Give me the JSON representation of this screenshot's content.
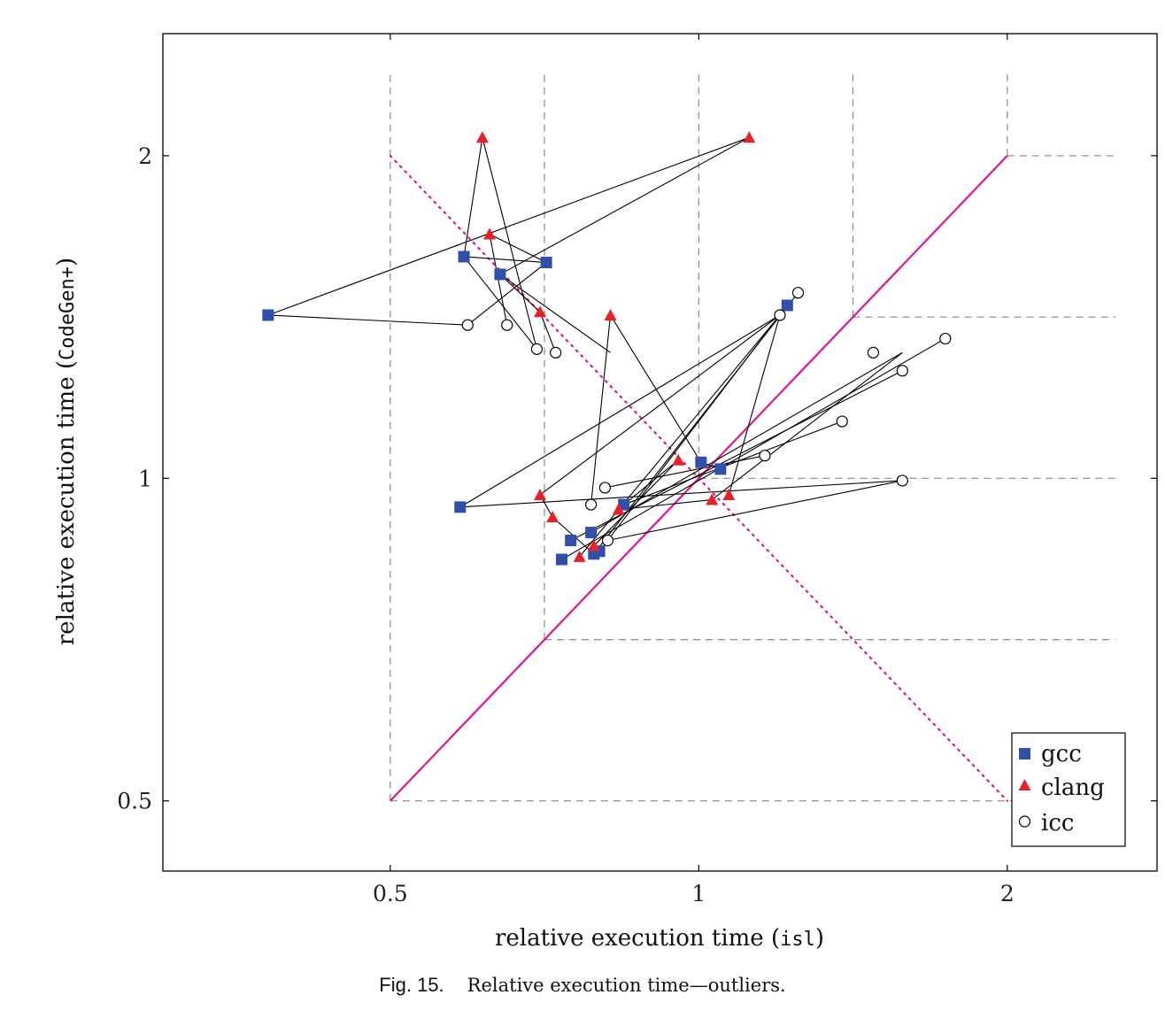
{
  "chart_data": {
    "type": "scatter",
    "xlabel_prefix": "relative execution time (",
    "xlabel_code": "isl",
    "xlabel_suffix": ")",
    "ylabel_prefix": "relative execution time (",
    "ylabel_code": "CodeGen+",
    "ylabel_suffix": ")",
    "x_scale": "log2",
    "y_scale": "log2",
    "xlim": [
      0.3,
      2.8
    ],
    "ylim": [
      0.43,
      2.6
    ],
    "xticks": [
      0.5,
      1,
      2
    ],
    "xtick_labels": [
      "0.5",
      "1",
      "2"
    ],
    "yticks": [
      0.5,
      1,
      2
    ],
    "ytick_labels": [
      "0.5",
      "1",
      "2"
    ],
    "legend_position": "bottom-right",
    "colors": {
      "gcc": "#2f4fa8",
      "clang": "#e8202a",
      "icc": "#000000",
      "diagonal": "#e0168c",
      "connector": "#000000",
      "grid": "#888888"
    },
    "series": [
      {
        "name": "gcc",
        "marker": "square",
        "points": [
          [
            0.38,
            1.42
          ],
          [
            0.59,
            1.61
          ],
          [
            0.64,
            1.55
          ],
          [
            0.71,
            1.59
          ],
          [
            0.585,
            0.94
          ],
          [
            0.735,
            0.84
          ],
          [
            0.75,
            0.875
          ],
          [
            0.785,
            0.89
          ],
          [
            0.79,
            0.85
          ],
          [
            0.8,
            0.855
          ],
          [
            0.845,
            0.945
          ],
          [
            1.005,
            1.035
          ],
          [
            1.05,
            1.02
          ],
          [
            1.22,
            1.45
          ]
        ]
      },
      {
        "name": "clang",
        "marker": "triangle",
        "points": [
          [
            0.615,
            2.08
          ],
          [
            0.625,
            1.69
          ],
          [
            0.7,
            1.43
          ],
          [
            0.82,
            1.42
          ],
          [
            1.12,
            2.08
          ],
          [
            0.7,
            0.965
          ],
          [
            0.72,
            0.92
          ],
          [
            0.765,
            0.845
          ],
          [
            0.79,
            0.865
          ],
          [
            0.835,
            0.935
          ],
          [
            0.955,
            1.04
          ],
          [
            1.03,
            0.955
          ],
          [
            1.07,
            0.965
          ]
        ]
      },
      {
        "name": "icc",
        "marker": "circle",
        "points": [
          [
            0.595,
            1.39
          ],
          [
            0.65,
            1.39
          ],
          [
            0.695,
            1.32
          ],
          [
            0.725,
            1.31
          ],
          [
            0.785,
            0.945
          ],
          [
            0.81,
            0.98
          ],
          [
            0.815,
            0.875
          ],
          [
            1.16,
            1.05
          ],
          [
            1.2,
            1.42
          ],
          [
            1.25,
            1.49
          ],
          [
            1.48,
            1.31
          ],
          [
            1.58,
            1.26
          ],
          [
            1.74,
            1.35
          ],
          [
            1.58,
            0.995
          ],
          [
            1.38,
            1.13
          ]
        ]
      }
    ],
    "connections": [
      [
        [
          0.38,
          1.42
        ],
        [
          1.12,
          2.08
        ]
      ],
      [
        [
          1.12,
          2.08
        ],
        [
          0.64,
          1.55
        ]
      ],
      [
        [
          0.64,
          1.55
        ],
        [
          0.82,
          1.31
        ]
      ],
      [
        [
          0.38,
          1.42
        ],
        [
          0.595,
          1.39
        ]
      ],
      [
        [
          0.595,
          1.39
        ],
        [
          0.71,
          1.59
        ]
      ],
      [
        [
          0.71,
          1.59
        ],
        [
          0.625,
          1.69
        ]
      ],
      [
        [
          0.625,
          1.69
        ],
        [
          0.65,
          1.39
        ]
      ],
      [
        [
          0.59,
          1.61
        ],
        [
          0.615,
          2.08
        ]
      ],
      [
        [
          0.615,
          2.08
        ],
        [
          0.695,
          1.32
        ]
      ],
      [
        [
          0.695,
          1.32
        ],
        [
          0.59,
          1.61
        ]
      ],
      [
        [
          0.59,
          1.61
        ],
        [
          0.71,
          1.59
        ]
      ],
      [
        [
          0.7,
          1.43
        ],
        [
          0.725,
          1.31
        ]
      ],
      [
        [
          0.64,
          1.55
        ],
        [
          0.7,
          1.43
        ]
      ],
      [
        [
          0.585,
          0.94
        ],
        [
          1.58,
          0.995
        ]
      ],
      [
        [
          0.585,
          0.94
        ],
        [
          1.2,
          1.42
        ]
      ],
      [
        [
          0.7,
          0.965
        ],
        [
          1.2,
          1.42
        ]
      ],
      [
        [
          0.785,
          0.945
        ],
        [
          0.82,
          1.42
        ]
      ],
      [
        [
          0.82,
          1.42
        ],
        [
          1.005,
          1.035
        ]
      ],
      [
        [
          1.005,
          1.035
        ],
        [
          1.05,
          1.02
        ]
      ],
      [
        [
          0.81,
          0.98
        ],
        [
          1.16,
          1.05
        ]
      ],
      [
        [
          0.735,
          0.84
        ],
        [
          1.74,
          1.35
        ]
      ],
      [
        [
          0.75,
          0.875
        ],
        [
          1.58,
          1.26
        ]
      ],
      [
        [
          0.785,
          0.89
        ],
        [
          1.58,
          1.31
        ]
      ],
      [
        [
          0.79,
          0.85
        ],
        [
          1.25,
          1.49
        ]
      ],
      [
        [
          0.8,
          0.855
        ],
        [
          1.22,
          1.45
        ]
      ],
      [
        [
          0.815,
          0.875
        ],
        [
          1.58,
          0.995
        ]
      ],
      [
        [
          0.845,
          0.945
        ],
        [
          1.38,
          1.13
        ]
      ],
      [
        [
          0.955,
          1.04
        ],
        [
          0.845,
          0.945
        ]
      ],
      [
        [
          1.07,
          0.965
        ],
        [
          1.2,
          1.42
        ]
      ],
      [
        [
          0.72,
          0.92
        ],
        [
          0.79,
          0.85
        ]
      ],
      [
        [
          0.765,
          0.845
        ],
        [
          1.2,
          1.42
        ]
      ],
      [
        [
          0.835,
          0.935
        ],
        [
          1.03,
          0.955
        ]
      ],
      [
        [
          1.03,
          0.955
        ],
        [
          1.58,
          1.31
        ]
      ],
      [
        [
          0.7,
          0.965
        ],
        [
          0.72,
          0.92
        ]
      ],
      [
        [
          0.79,
          0.865
        ],
        [
          0.955,
          1.04
        ]
      ]
    ],
    "diagonal": [
      [
        0.5,
        0.5
      ],
      [
        2,
        2
      ]
    ],
    "anti_diagonal": [
      [
        0.5,
        2
      ],
      [
        2,
        0.5
      ]
    ],
    "reference_lines_x": [
      {
        "x": 0.5,
        "y_from": 0.5,
        "y_to": 2.4
      },
      {
        "x": 0.707,
        "y_from": 0.707,
        "y_to": 2.4
      },
      {
        "x": 1,
        "y_from": 1,
        "y_to": 2.4
      },
      {
        "x": 1.414,
        "y_from": 1.414,
        "y_to": 2.4
      },
      {
        "x": 2,
        "y_from": 2,
        "y_to": 2.4
      }
    ],
    "reference_lines_y": [
      {
        "y": 2,
        "x_from": 2,
        "x_to": 2.55
      },
      {
        "y": 1.414,
        "x_from": 1.414,
        "x_to": 2.55
      },
      {
        "y": 1,
        "x_from": 1,
        "x_to": 2.55
      },
      {
        "y": 0.707,
        "x_from": 0.707,
        "x_to": 2.55
      },
      {
        "y": 0.5,
        "x_from": 0.5,
        "x_to": 2.55
      }
    ]
  },
  "caption": {
    "figure_number": "Fig. 15.",
    "text": "Relative execution time—outliers."
  }
}
